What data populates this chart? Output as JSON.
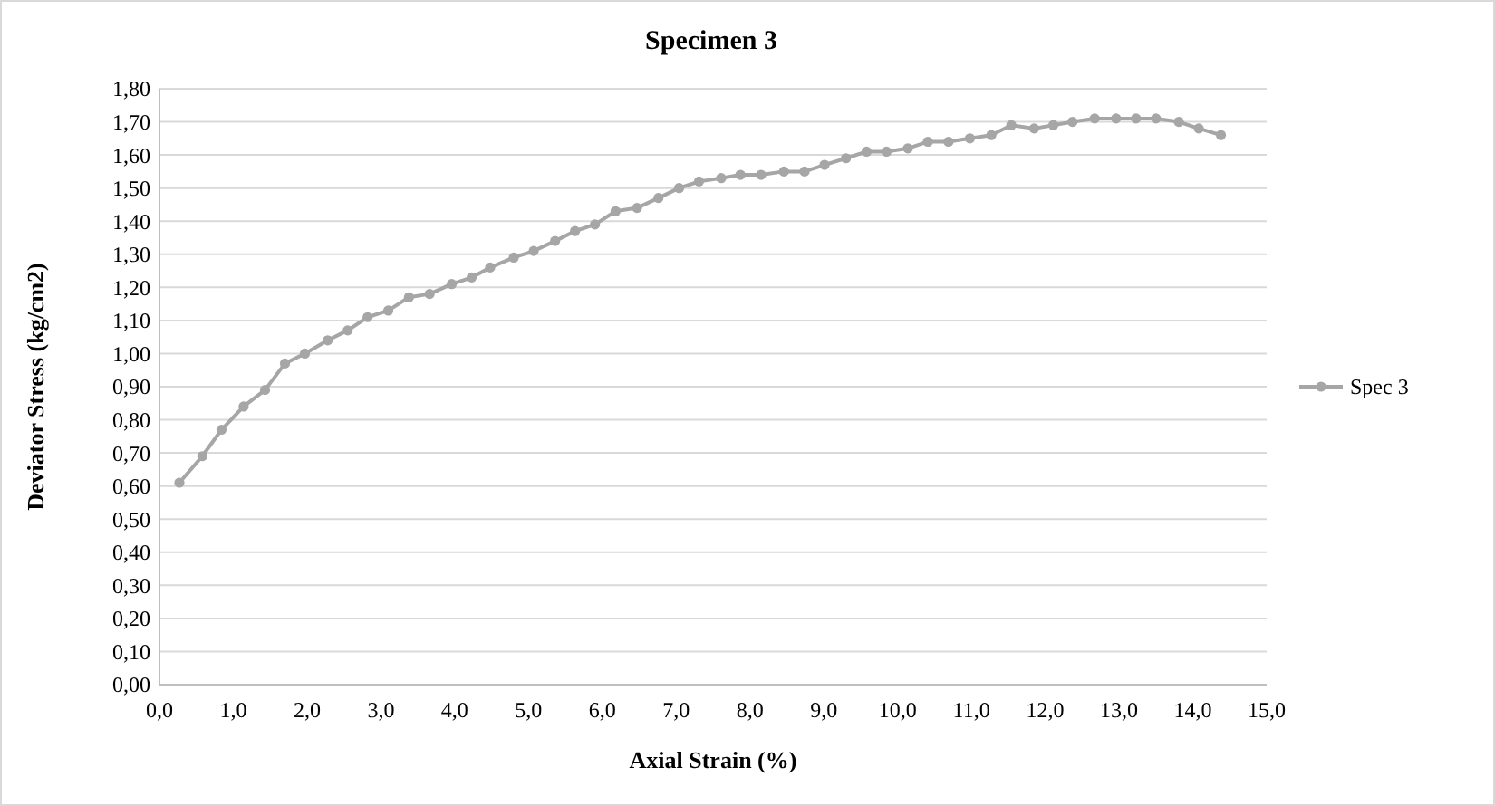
{
  "chart_data": {
    "type": "line",
    "title": "Specimen 3",
    "xlabel": "Axial Strain (%)",
    "ylabel": "Deviator Stress (kg/cm2)",
    "x": [
      0.27,
      0.58,
      0.84,
      1.14,
      1.43,
      1.7,
      1.97,
      2.28,
      2.55,
      2.82,
      3.1,
      3.38,
      3.66,
      3.96,
      4.23,
      4.48,
      4.8,
      5.07,
      5.36,
      5.63,
      5.9,
      6.18,
      6.47,
      6.76,
      7.04,
      7.31,
      7.61,
      7.87,
      8.15,
      8.46,
      8.74,
      9.01,
      9.3,
      9.58,
      9.85,
      10.14,
      10.41,
      10.69,
      10.98,
      11.27,
      11.54,
      11.85,
      12.11,
      12.37,
      12.67,
      12.96,
      13.23,
      13.5,
      13.81,
      14.08,
      14.38
    ],
    "series": [
      {
        "name": "Spec 3",
        "color": "#a6a6a6",
        "values": [
          0.61,
          0.69,
          0.77,
          0.84,
          0.89,
          0.97,
          1.0,
          1.04,
          1.07,
          1.11,
          1.13,
          1.17,
          1.18,
          1.21,
          1.23,
          1.26,
          1.29,
          1.31,
          1.34,
          1.37,
          1.39,
          1.43,
          1.44,
          1.47,
          1.5,
          1.52,
          1.53,
          1.54,
          1.54,
          1.55,
          1.55,
          1.57,
          1.59,
          1.61,
          1.61,
          1.62,
          1.64,
          1.64,
          1.65,
          1.66,
          1.69,
          1.68,
          1.69,
          1.7,
          1.71,
          1.71,
          1.71,
          1.71,
          1.7,
          1.68,
          1.66
        ]
      }
    ],
    "xlim": [
      0,
      15
    ],
    "xticks": [
      {
        "value": 0,
        "label": "0,0"
      },
      {
        "value": 1,
        "label": "1,0"
      },
      {
        "value": 2,
        "label": "2,0"
      },
      {
        "value": 3,
        "label": "3,0"
      },
      {
        "value": 4,
        "label": "4,0"
      },
      {
        "value": 5,
        "label": "5,0"
      },
      {
        "value": 6,
        "label": "6,0"
      },
      {
        "value": 7,
        "label": "7,0"
      },
      {
        "value": 8,
        "label": "8,0"
      },
      {
        "value": 9,
        "label": "9,0"
      },
      {
        "value": 10,
        "label": "10,0"
      },
      {
        "value": 11,
        "label": "11,0"
      },
      {
        "value": 12,
        "label": "12,0"
      },
      {
        "value": 13,
        "label": "13,0"
      },
      {
        "value": 14,
        "label": "14,0"
      },
      {
        "value": 15,
        "label": "15,0"
      }
    ],
    "ylim": [
      0,
      1.8
    ],
    "yticks": [
      {
        "value": 0,
        "label": "0,00"
      },
      {
        "value": 0.1,
        "label": "0,10"
      },
      {
        "value": 0.2,
        "label": "0,20"
      },
      {
        "value": 0.3,
        "label": "0,30"
      },
      {
        "value": 0.4,
        "label": "0,40"
      },
      {
        "value": 0.5,
        "label": "0,50"
      },
      {
        "value": 0.6,
        "label": "0,60"
      },
      {
        "value": 0.7,
        "label": "0,70"
      },
      {
        "value": 0.8,
        "label": "0,80"
      },
      {
        "value": 0.9,
        "label": "0,90"
      },
      {
        "value": 1.0,
        "label": "1,00"
      },
      {
        "value": 1.1,
        "label": "1,10"
      },
      {
        "value": 1.2,
        "label": "1,20"
      },
      {
        "value": 1.3,
        "label": "1,30"
      },
      {
        "value": 1.4,
        "label": "1,40"
      },
      {
        "value": 1.5,
        "label": "1,50"
      },
      {
        "value": 1.6,
        "label": "1,60"
      },
      {
        "value": 1.7,
        "label": "1,70"
      },
      {
        "value": 1.8,
        "label": "1,80"
      }
    ],
    "grid": "y",
    "legend": "right",
    "marker": "circle",
    "line_style": "solid"
  }
}
